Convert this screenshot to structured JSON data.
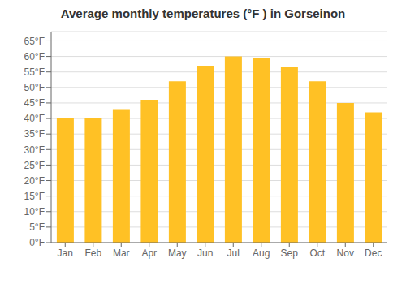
{
  "chart_data": {
    "type": "bar",
    "title": "Average monthly temperatures (°F ) in Gorseinon",
    "categories": [
      "Jan",
      "Feb",
      "Mar",
      "Apr",
      "May",
      "Jun",
      "Jul",
      "Aug",
      "Sep",
      "Oct",
      "Nov",
      "Dec"
    ],
    "values": [
      40,
      40,
      43,
      46,
      52,
      57,
      60,
      59.5,
      56.5,
      52,
      45,
      42
    ],
    "color": "#FFC125",
    "ylim": [
      0,
      68
    ],
    "yticks": [
      {
        "value": 0,
        "label": "0°F"
      },
      {
        "value": 5,
        "label": "5°F"
      },
      {
        "value": 10,
        "label": "10°F"
      },
      {
        "value": 15,
        "label": "15°F"
      },
      {
        "value": 20,
        "label": "20°F"
      },
      {
        "value": 25,
        "label": "25°F"
      },
      {
        "value": 30,
        "label": "30°F"
      },
      {
        "value": 35,
        "label": "35°F"
      },
      {
        "value": 40,
        "label": "40°F"
      },
      {
        "value": 45,
        "label": "45°F"
      },
      {
        "value": 50,
        "label": "50°F"
      },
      {
        "value": 55,
        "label": "55°F"
      },
      {
        "value": 60,
        "label": "60°F"
      },
      {
        "value": 65,
        "label": "65°F"
      }
    ],
    "grid": true
  }
}
